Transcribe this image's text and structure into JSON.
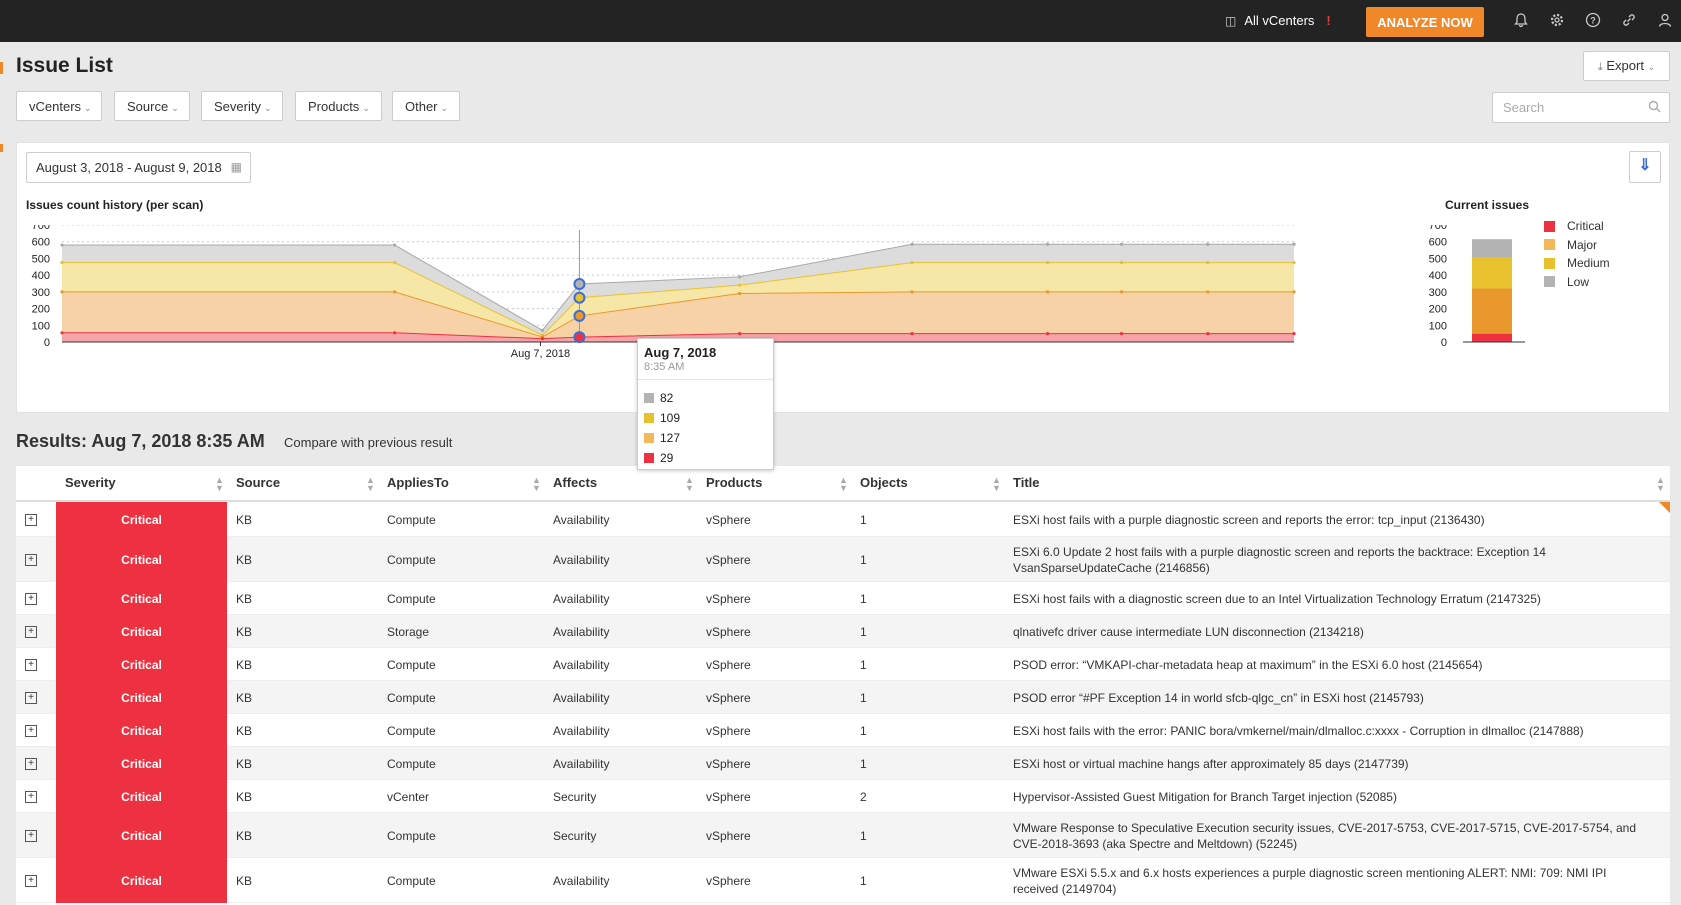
{
  "topbar": {
    "vcenters_label": "All vCenters",
    "vcenters_alert": "!",
    "analyze_label": "ANALYZE NOW",
    "icons": [
      "bell-icon",
      "gear-icon",
      "help-icon",
      "link-icon",
      "user-icon"
    ]
  },
  "page": {
    "title": "Issue List",
    "export_label": "Export"
  },
  "filters": [
    {
      "label": "vCenters"
    },
    {
      "label": "Source"
    },
    {
      "label": "Severity"
    },
    {
      "label": "Products"
    },
    {
      "label": "Other"
    }
  ],
  "search": {
    "placeholder": "Search"
  },
  "date_range": "August 3, 2018 - August 9, 2018",
  "colors": {
    "critical": "#ee3140",
    "major": "#e8982d",
    "medium": "#e8c12f",
    "low": "#b3b3b3",
    "accent": "#f0882a",
    "link_blue": "#3d6dd7"
  },
  "chart_data": [
    {
      "type": "area",
      "title": "Issues count history (per scan)",
      "ylim": [
        0,
        700
      ],
      "yticks": [
        "0",
        "100",
        "200",
        "300",
        "400",
        "500",
        "600",
        "700"
      ],
      "x_tick_label": "Aug 7, 2018",
      "grid": true,
      "stacked": true,
      "scan_index": [
        0,
        1,
        2,
        3,
        4,
        5,
        6,
        7,
        8,
        9
      ],
      "series": [
        {
          "name": "Critical",
          "color": "#ee3140",
          "values": [
            55,
            55,
            20,
            29,
            50,
            50,
            50,
            50,
            50,
            50
          ]
        },
        {
          "name": "Major",
          "color": "#e8982d",
          "values": [
            245,
            245,
            10,
            127,
            240,
            250,
            250,
            250,
            250,
            250
          ]
        },
        {
          "name": "Medium",
          "color": "#e8c12f",
          "values": [
            175,
            175,
            10,
            109,
            50,
            175,
            175,
            175,
            175,
            175
          ]
        },
        {
          "name": "Low",
          "color": "#b3b3b3",
          "values": [
            105,
            105,
            30,
            82,
            50,
            110,
            110,
            110,
            110,
            110
          ]
        }
      ],
      "tooltip": {
        "date": "Aug 7, 2018",
        "time": "8:35 AM",
        "rows": [
          {
            "series": "Low",
            "value": "82"
          },
          {
            "series": "Medium",
            "value": "109"
          },
          {
            "series": "Major",
            "value": "127"
          },
          {
            "series": "Critical",
            "value": "29"
          }
        ]
      }
    },
    {
      "type": "bar",
      "stacked": true,
      "title": "Current issues",
      "ylim": [
        0,
        700
      ],
      "yticks": [
        "0",
        "100",
        "200",
        "300",
        "400",
        "500",
        "600",
        "700"
      ],
      "categories": [
        "Current"
      ],
      "series": [
        {
          "name": "Critical",
          "color": "#ee3140",
          "values": [
            50
          ]
        },
        {
          "name": "Major",
          "color": "#e8982d",
          "values": [
            270
          ]
        },
        {
          "name": "Medium",
          "color": "#e8c12f",
          "values": [
            185
          ]
        },
        {
          "name": "Low",
          "color": "#b3b3b3",
          "values": [
            110
          ]
        }
      ],
      "legend": [
        "Critical",
        "Major",
        "Medium",
        "Low"
      ],
      "legend_position": "right"
    }
  ],
  "results": {
    "title": "Results: Aug 7, 2018 8:35 AM",
    "compare_label": "Compare with previous result"
  },
  "table": {
    "columns": [
      "Severity",
      "Source",
      "AppliesTo",
      "Affects",
      "Products",
      "Objects",
      "Title"
    ],
    "rows": [
      {
        "severity": "Critical",
        "source": "KB",
        "applies_to": "Compute",
        "affects": "Availability",
        "products": "vSphere",
        "objects": "1",
        "title": "ESXi host fails with a purple diagnostic screen and reports the error: tcp_input (2136430)"
      },
      {
        "severity": "Critical",
        "source": "KB",
        "applies_to": "Compute",
        "affects": "Availability",
        "products": "vSphere",
        "objects": "1",
        "title": "ESXi 6.0 Update 2 host fails with a purple diagnostic screen and reports the backtrace: Exception 14 VsanSparseUpdateCache (2146856)"
      },
      {
        "severity": "Critical",
        "source": "KB",
        "applies_to": "Compute",
        "affects": "Availability",
        "products": "vSphere",
        "objects": "1",
        "title": "ESXi host fails with a diagnostic screen due to an Intel Virtualization Technology Erratum (2147325)"
      },
      {
        "severity": "Critical",
        "source": "KB",
        "applies_to": "Storage",
        "affects": "Availability",
        "products": "vSphere",
        "objects": "1",
        "title": "qlnativefc driver cause intermediate LUN disconnection (2134218)"
      },
      {
        "severity": "Critical",
        "source": "KB",
        "applies_to": "Compute",
        "affects": "Availability",
        "products": "vSphere",
        "objects": "1",
        "title": "PSOD error: “VMKAPI-char-metadata heap at maximum” in the ESXi 6.0 host (2145654)"
      },
      {
        "severity": "Critical",
        "source": "KB",
        "applies_to": "Compute",
        "affects": "Availability",
        "products": "vSphere",
        "objects": "1",
        "title": "PSOD error “#PF Exception 14 in world sfcb-qlgc_cn” in ESXi host (2145793)"
      },
      {
        "severity": "Critical",
        "source": "KB",
        "applies_to": "Compute",
        "affects": "Availability",
        "products": "vSphere",
        "objects": "1",
        "title": "ESXi host fails with the error: PANIC bora/vmkernel/main/dlmalloc.c:xxxx - Corruption in dlmalloc (2147888)"
      },
      {
        "severity": "Critical",
        "source": "KB",
        "applies_to": "Compute",
        "affects": "Availability",
        "products": "vSphere",
        "objects": "1",
        "title": "ESXi host or virtual machine hangs after approximately 85 days (2147739)"
      },
      {
        "severity": "Critical",
        "source": "KB",
        "applies_to": "vCenter",
        "affects": "Security",
        "products": "vSphere",
        "objects": "2",
        "title": "Hypervisor-Assisted Guest Mitigation for Branch Target injection (52085)"
      },
      {
        "severity": "Critical",
        "source": "KB",
        "applies_to": "Compute",
        "affects": "Security",
        "products": "vSphere",
        "objects": "1",
        "title": "VMware Response to Speculative Execution security issues, CVE-2017-5753, CVE-2017-5715, CVE-2017-5754, and CVE-2018-3693 (aka Spectre and Meltdown) (52245)"
      },
      {
        "severity": "Critical",
        "source": "KB",
        "applies_to": "Compute",
        "affects": "Availability",
        "products": "vSphere",
        "objects": "1",
        "title": "VMware ESXi 5.5.x and 6.x hosts experiences a purple diagnostic screen mentioning ALERT: NMI: 709: NMI IPI received (2149704)"
      }
    ]
  }
}
